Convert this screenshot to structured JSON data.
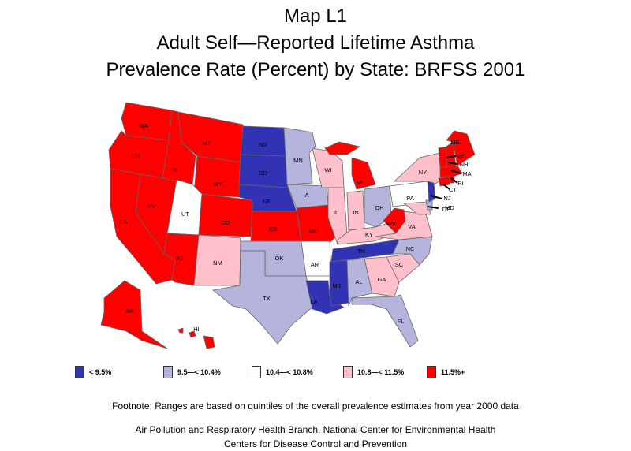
{
  "title": {
    "line1": "Map L1",
    "line2": "Adult Self—Reported Lifetime Asthma",
    "line3": "Prevalence Rate (Percent) by State: BRFSS 2001"
  },
  "colors": {
    "lt9_5": "#3232b4",
    "c9_5": "#b4b4dc",
    "c10_4": "#ffffff",
    "c10_8": "#ffc0cc",
    "c11_5": "#ff0000"
  },
  "legend": [
    {
      "key": "lt9_5",
      "label": "< 9.5%"
    },
    {
      "key": "c9_5",
      "label": "9.5—< 10.4%"
    },
    {
      "key": "c10_4",
      "label": "10.4—< 10.8%"
    },
    {
      "key": "c10_8",
      "label": "10.8—< 11.5%"
    },
    {
      "key": "c11_5",
      "label": "11.5%+"
    }
  ],
  "states": {
    "WA": "c11_5",
    "OR": "c11_5",
    "CA": "c11_5",
    "NV": "c11_5",
    "ID": "c11_5",
    "MT": "c11_5",
    "WY": "c11_5",
    "UT": "c10_4",
    "CO": "c11_5",
    "AZ": "c11_5",
    "NM": "c10_8",
    "ND": "lt9_5",
    "SD": "lt9_5",
    "NE": "lt9_5",
    "KS": "c11_5",
    "OK": "c9_5",
    "TX": "c9_5",
    "MN": "c9_5",
    "IA": "c9_5",
    "MO": "c11_5",
    "AR": "c10_4",
    "LA": "lt9_5",
    "WI": "c10_8",
    "IL": "c10_8",
    "MI": "c11_5",
    "IN": "c10_8",
    "OH": "c9_5",
    "KY": "c10_8",
    "TN": "lt9_5",
    "MS": "lt9_5",
    "AL": "c9_5",
    "GA": "c10_8",
    "FL": "c9_5",
    "SC": "c10_8",
    "NC": "c9_5",
    "VA": "c10_8",
    "WV": "c11_5",
    "PA": "c10_4",
    "NY": "c10_8",
    "VT": "c11_5",
    "NH": "c11_5",
    "ME": "c11_5",
    "MA": "c11_5",
    "RI": "c11_5",
    "CT": "c11_5",
    "NJ": "lt9_5",
    "DE": "c9_5",
    "MD": "c10_8",
    "AK": "c11_5",
    "HI": "c11_5"
  },
  "footnotes": {
    "f1": "Footnote: Ranges are based on quintiles of the overall prevalence estimates from year 2000 data",
    "f2": "Air Pollution and Respiratory Health Branch, National Center for Environmental Health",
    "f3": "Centers for Disease Control and Prevention"
  }
}
